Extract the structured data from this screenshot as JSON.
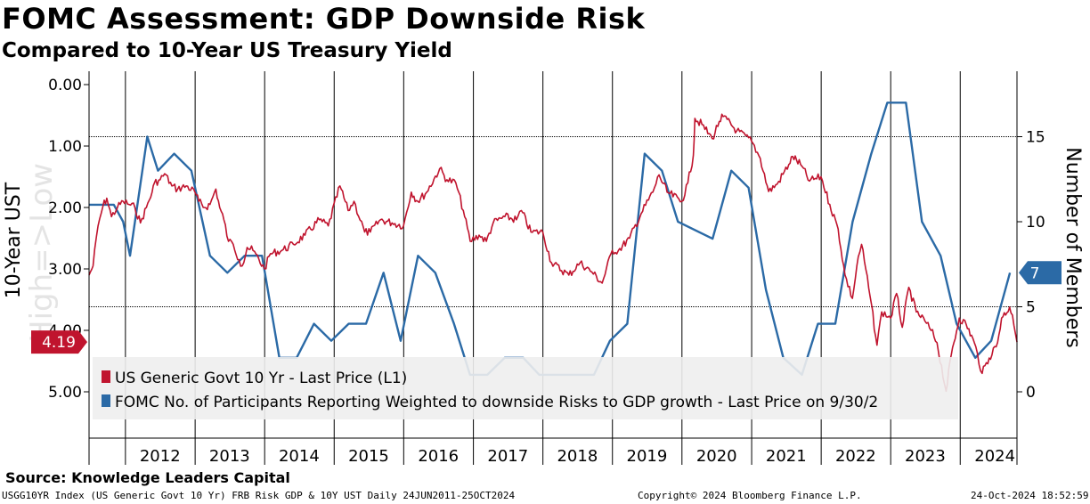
{
  "title": "FOMC Assessment: GDP Downside Risk",
  "subtitle": "Compared to 10-Year US Treasury Yield",
  "source": "Source: Knowledge Leaders Capital",
  "footer": {
    "left": "USGG10YR Index (US Generic Govt 10 Yr) FRB Risk GDP & 10Y UST  Daily 24JUN2011-25OCT2024",
    "middle": "Copyright© 2024 Bloomberg Finance L.P.",
    "right": "24-Oct-2024 18:52:59"
  },
  "colors": {
    "treasury_series": "#c0142e",
    "fomc_series": "#2b6aa6",
    "grid": "#000000",
    "legend_bg": "#eeeeee"
  },
  "chart_data": {
    "type": "line",
    "x_range": [
      "2011-06-24",
      "2024-10-25"
    ],
    "x_tick_labels": [
      "2012",
      "2013",
      "2014",
      "2015",
      "2016",
      "2017",
      "2018",
      "2019",
      "2020",
      "2021",
      "2022",
      "2023",
      "2024"
    ],
    "left_axis": {
      "label": "10-Year UST",
      "inverted": true,
      "range": [
        0,
        5
      ],
      "tick_labels": [
        "0.00",
        "1.00",
        "2.00",
        "3.00",
        "4.00",
        "5.00"
      ],
      "watermark": "High=>Low"
    },
    "right_axis": {
      "label": "Number of Members",
      "range": [
        0,
        18
      ],
      "tick_labels": [
        "0",
        "5",
        "10",
        "15"
      ]
    },
    "last_value_tags": {
      "treasury": "4.19",
      "fomc": "7"
    },
    "legend_placement": "bottom-left",
    "series": [
      {
        "name": "US Generic Govt 10 Yr - Last Price (L1)",
        "axis": "left",
        "x": [
          "2011-06-24",
          "2011-07-15",
          "2011-08-10",
          "2011-09-05",
          "2011-09-25",
          "2011-10-20",
          "2011-11-20",
          "2011-12-20",
          "2012-01-20",
          "2012-02-20",
          "2012-03-20",
          "2012-04-20",
          "2012-05-20",
          "2012-06-01",
          "2012-07-01",
          "2012-07-25",
          "2012-09-01",
          "2012-10-01",
          "2012-11-15",
          "2012-12-31",
          "2013-01-20",
          "2013-02-20",
          "2013-03-20",
          "2013-04-20",
          "2013-05-10",
          "2013-06-01",
          "2013-06-25",
          "2013-07-20",
          "2013-08-20",
          "2013-09-05",
          "2013-10-01",
          "2013-11-01",
          "2013-12-31",
          "2014-02-01",
          "2014-04-01",
          "2014-06-01",
          "2014-08-01",
          "2014-10-15",
          "2014-12-01",
          "2015-01-31",
          "2015-03-15",
          "2015-04-15",
          "2015-06-10",
          "2015-07-10",
          "2015-09-01",
          "2015-11-01",
          "2015-12-31",
          "2016-02-10",
          "2016-03-15",
          "2016-05-01",
          "2016-07-08",
          "2016-08-15",
          "2016-10-01",
          "2016-11-09",
          "2016-12-15",
          "2017-01-31",
          "2017-03-10",
          "2017-04-15",
          "2017-06-15",
          "2017-08-15",
          "2017-09-10",
          "2017-10-30",
          "2017-12-31",
          "2018-02-15",
          "2018-05-17",
          "2018-07-15",
          "2018-09-15",
          "2018-11-08",
          "2018-12-31",
          "2019-02-01",
          "2019-04-01",
          "2019-06-01",
          "2019-08-01",
          "2019-09-03",
          "2019-10-15",
          "2019-12-31",
          "2020-02-01",
          "2020-03-01",
          "2020-03-09",
          "2020-04-15",
          "2020-06-08",
          "2020-07-15",
          "2020-08-04",
          "2020-10-15",
          "2020-12-31",
          "2021-02-15",
          "2021-03-31",
          "2021-05-15",
          "2021-07-15",
          "2021-08-04",
          "2021-09-15",
          "2021-11-01",
          "2021-12-31",
          "2022-02-15",
          "2022-03-31",
          "2022-05-06",
          "2022-06-14",
          "2022-07-15",
          "2022-08-01",
          "2022-09-15",
          "2022-10-21",
          "2022-11-15",
          "2023-01-01",
          "2023-02-01",
          "2023-03-03",
          "2023-04-06",
          "2023-05-15",
          "2023-06-30",
          "2023-08-01",
          "2023-09-01",
          "2023-10-19",
          "2023-11-15",
          "2023-12-27",
          "2024-02-01",
          "2024-03-15",
          "2024-04-25",
          "2024-06-01",
          "2024-07-15",
          "2024-08-05",
          "2024-09-16",
          "2024-10-01",
          "2024-10-25"
        ],
        "values": [
          3.1,
          2.95,
          2.3,
          1.98,
          1.85,
          2.15,
          2.0,
          1.9,
          1.95,
          2.0,
          2.25,
          2.0,
          1.75,
          1.6,
          1.55,
          1.45,
          1.65,
          1.7,
          1.65,
          1.75,
          1.9,
          2.0,
          1.95,
          1.7,
          2.0,
          2.2,
          2.55,
          2.6,
          2.85,
          2.95,
          2.65,
          2.7,
          3.0,
          2.75,
          2.7,
          2.6,
          2.45,
          2.2,
          2.3,
          1.65,
          2.05,
          1.9,
          2.4,
          2.4,
          2.2,
          2.25,
          2.3,
          1.75,
          1.9,
          1.75,
          1.37,
          1.55,
          1.6,
          2.05,
          2.55,
          2.45,
          2.55,
          2.25,
          2.15,
          2.2,
          2.05,
          2.4,
          2.4,
          2.9,
          3.1,
          2.9,
          3.05,
          3.23,
          2.7,
          2.7,
          2.5,
          2.1,
          1.75,
          1.47,
          1.75,
          1.9,
          1.6,
          1.15,
          0.55,
          0.65,
          0.88,
          0.6,
          0.52,
          0.75,
          0.92,
          1.2,
          1.74,
          1.62,
          1.3,
          1.17,
          1.3,
          1.57,
          1.5,
          1.95,
          2.35,
          3.1,
          3.48,
          2.8,
          2.6,
          3.45,
          4.24,
          3.7,
          3.8,
          3.4,
          3.95,
          3.3,
          3.7,
          3.85,
          4.0,
          4.2,
          4.99,
          4.4,
          3.8,
          3.9,
          4.2,
          4.7,
          4.45,
          4.2,
          3.8,
          3.62,
          3.75,
          4.19
        ]
      },
      {
        "name": "FOMC No. of Participants Reporting Weighted to downside Risks to GDP growth - Last Price on 9/30/2",
        "axis": "right",
        "x": [
          "2011-06-24",
          "2011-11-01",
          "2011-12-20",
          "2012-01-25",
          "2012-04-25",
          "2012-06-20",
          "2012-09-13",
          "2012-12-12",
          "2013-03-20",
          "2013-06-19",
          "2013-09-18",
          "2013-12-18",
          "2014-03-19",
          "2014-06-18",
          "2014-09-17",
          "2014-12-17",
          "2015-03-18",
          "2015-06-17",
          "2015-09-17",
          "2015-12-16",
          "2016-03-16",
          "2016-06-15",
          "2016-09-21",
          "2016-12-14",
          "2017-03-15",
          "2017-06-14",
          "2017-09-20",
          "2017-12-13",
          "2018-03-21",
          "2018-06-13",
          "2018-09-26",
          "2018-12-19",
          "2019-03-20",
          "2019-06-19",
          "2019-09-18",
          "2019-12-11",
          "2020-06-10",
          "2020-09-16",
          "2020-12-16",
          "2021-03-17",
          "2021-06-16",
          "2021-09-22",
          "2021-12-15",
          "2022-03-16",
          "2022-06-15",
          "2022-09-21",
          "2022-12-14",
          "2023-03-22",
          "2023-06-14",
          "2023-09-20",
          "2023-12-13",
          "2024-03-20",
          "2024-06-12",
          "2024-09-18"
        ],
        "values": [
          11,
          11,
          10,
          8,
          15,
          13,
          14,
          13,
          8,
          7,
          8,
          8,
          2,
          2,
          4,
          3,
          4,
          4,
          7,
          3,
          8,
          7,
          4,
          1,
          1,
          2,
          2,
          1,
          1,
          1,
          1,
          3,
          4,
          14,
          13,
          10,
          9,
          13,
          12,
          6,
          2,
          1,
          4,
          4,
          10,
          14,
          17,
          17,
          10,
          8,
          4,
          2,
          3,
          7
        ]
      }
    ]
  }
}
